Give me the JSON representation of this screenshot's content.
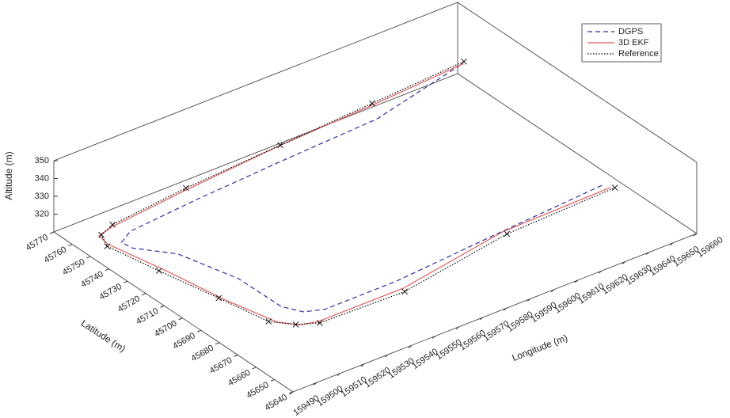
{
  "chart_data": {
    "type": "line3d",
    "xlabel": "Longitude (m)",
    "ylabel": "Latitude (m)",
    "zlabel": "Altitude (m)",
    "xlim": [
      159490,
      159660
    ],
    "ylim": [
      45640,
      45770
    ],
    "zlim": [
      310,
      350
    ],
    "xticks": [
      159490,
      159500,
      159510,
      159520,
      159530,
      159540,
      159550,
      159560,
      159570,
      159580,
      159590,
      159600,
      159610,
      159620,
      159630,
      159640,
      159650,
      159660
    ],
    "yticks": [
      45640,
      45650,
      45660,
      45670,
      45680,
      45690,
      45700,
      45710,
      45720,
      45730,
      45740,
      45750,
      45760,
      45770
    ],
    "zticks": [
      320,
      330,
      340,
      350
    ],
    "legend": "top-right",
    "series": [
      {
        "name": "DGPS",
        "color": "#2a2f9e",
        "linestyle": "dashed",
        "x": [
          159655,
          159612,
          159572,
          159531,
          159502,
          159496,
          159496,
          159505,
          159512,
          159513,
          159516,
          159522,
          159553,
          159600,
          159646
        ],
        "y": [
          45762,
          45752,
          45748,
          45746,
          45744,
          45741,
          45735,
          45722,
          45698,
          45676,
          45668,
          45664,
          45665,
          45670,
          45672
        ],
        "z": [
          323,
          322,
          324,
          323,
          322,
          321,
          322,
          323,
          322,
          321,
          322,
          323,
          322,
          321,
          323
        ]
      },
      {
        "name": "3D EKF",
        "color": "#e05a5a",
        "linestyle": "solid",
        "x": [
          159657,
          159616,
          159575,
          159533,
          159499,
          159492,
          159491,
          159496,
          159500,
          159505,
          159510,
          159516,
          159552,
          159601,
          159647
        ],
        "y": [
          45763,
          45760,
          45757,
          45754,
          45750,
          45748,
          45742,
          45716,
          45690,
          45668,
          45662,
          45660,
          45660,
          45669,
          45670
        ],
        "z": [
          322,
          322,
          323,
          322,
          322,
          322,
          322,
          322,
          322,
          322,
          322,
          322,
          322,
          322,
          322
        ]
      },
      {
        "name": "Reference",
        "color": "#000000",
        "linestyle": "dotted",
        "marker": "x",
        "x": [
          159658,
          159617,
          159576,
          159534,
          159500,
          159493,
          159490,
          159494,
          159499,
          159503,
          159509,
          159516,
          159551,
          159601,
          159648
        ],
        "y": [
          45764,
          45761,
          45758,
          45755,
          45751,
          45748,
          45741,
          45718,
          45692,
          45670,
          45663,
          45659,
          45658,
          45667,
          45669
        ],
        "z": [
          322,
          322,
          322,
          322,
          322,
          322,
          322,
          322,
          322,
          322,
          322,
          322,
          322,
          322,
          322
        ]
      }
    ]
  }
}
